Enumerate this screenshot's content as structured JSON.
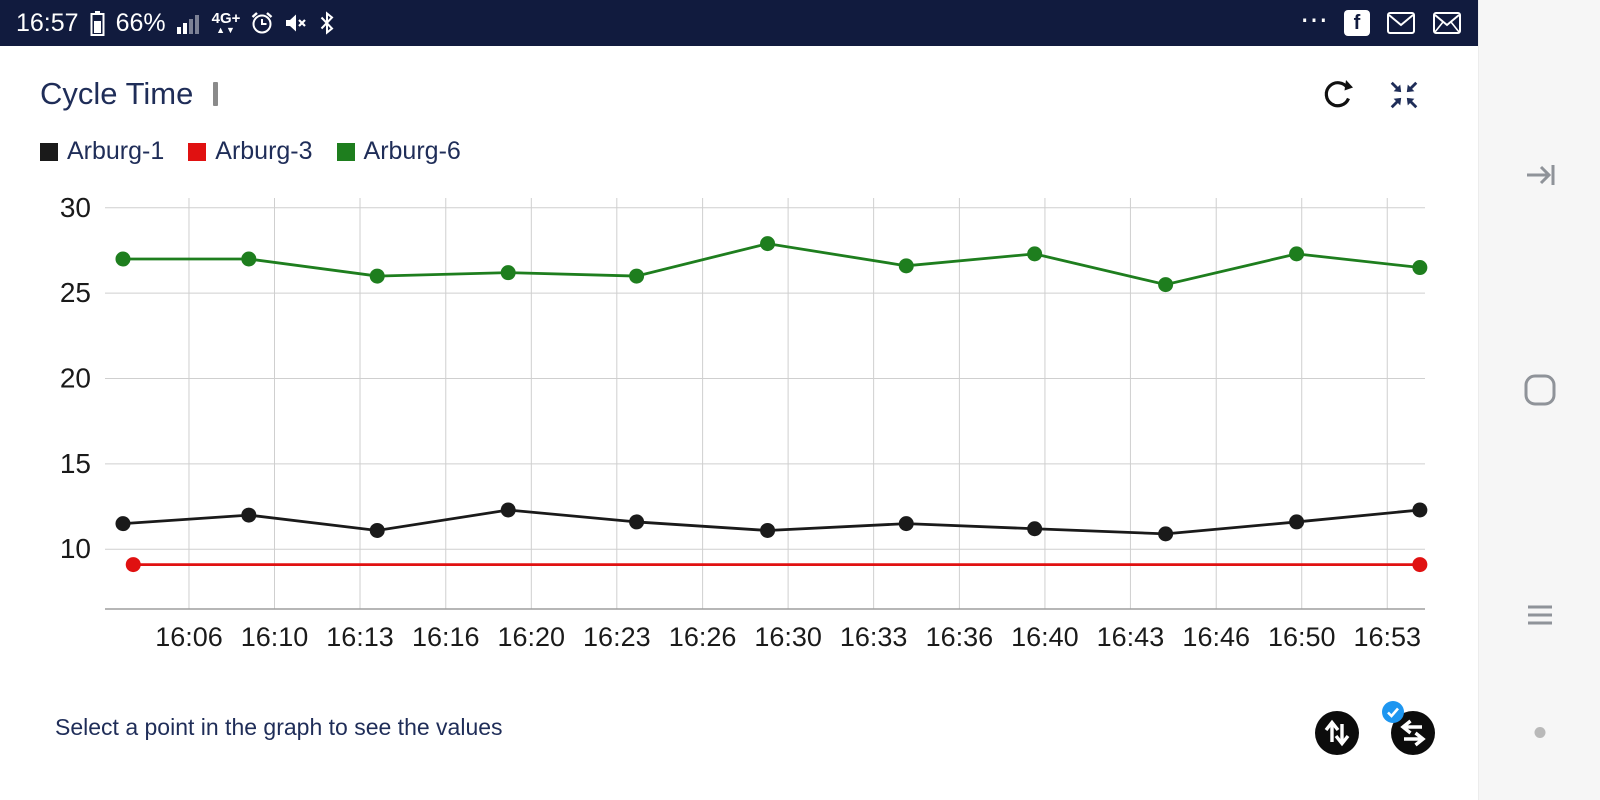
{
  "colors": {
    "status_bar_bg": "#111b3e",
    "navy_text": "#1f2d58",
    "grid": "#cfcfcf",
    "badge_blue": "#1e96f0",
    "nav_rail_bg": "#f6f6f6",
    "nav_icon": "#8f9399",
    "series_black": "#1a1a1a",
    "series_red": "#e01111",
    "series_green": "#1e7e1e"
  },
  "status_bar": {
    "time": "16:57",
    "battery_percent": "66%",
    "network_label": "4G+",
    "overflow_dots": "⋯"
  },
  "header": {
    "title": "Cycle Time"
  },
  "legend": [
    {
      "label": "Arburg-1",
      "color": "#1a1a1a"
    },
    {
      "label": "Arburg-3",
      "color": "#e01111"
    },
    {
      "label": "Arburg-6",
      "color": "#1e7e1e"
    }
  ],
  "chart_data": {
    "type": "line",
    "title": "Cycle Time",
    "x_tick_labels": [
      "16:06",
      "16:10",
      "16:13",
      "16:16",
      "16:20",
      "16:23",
      "16:26",
      "16:30",
      "16:33",
      "16:36",
      "16:40",
      "16:43",
      "16:46",
      "16:50",
      "16:53"
    ],
    "x_tick_minutes": [
      6.67,
      10,
      13.33,
      16.67,
      20,
      23.33,
      26.67,
      30,
      33.33,
      36.67,
      40,
      43.33,
      46.67,
      50,
      53.33
    ],
    "xlim_minutes": [
      3.4,
      54.8
    ],
    "y_ticks": [
      10,
      15,
      20,
      25,
      30
    ],
    "ylim": [
      6.5,
      31.1
    ],
    "grid": true,
    "legend_position": "top-left",
    "series": [
      {
        "name": "Arburg-1",
        "color": "#1a1a1a",
        "marker": "all",
        "x_minutes": [
          4.1,
          9.0,
          14.0,
          19.1,
          24.1,
          29.2,
          34.6,
          39.6,
          44.7,
          49.8,
          54.6
        ],
        "values": [
          11.5,
          12.0,
          11.1,
          12.3,
          11.6,
          11.1,
          11.5,
          11.2,
          10.9,
          11.6,
          12.3
        ]
      },
      {
        "name": "Arburg-3",
        "color": "#e01111",
        "marker": "ends",
        "x_minutes": [
          4.5,
          54.6
        ],
        "values": [
          9.1,
          9.1
        ]
      },
      {
        "name": "Arburg-6",
        "color": "#1e7e1e",
        "marker": "all",
        "x_minutes": [
          4.1,
          9.0,
          14.0,
          19.1,
          24.1,
          29.2,
          34.6,
          39.6,
          44.7,
          49.8,
          54.6
        ],
        "values": [
          27.0,
          27.0,
          26.0,
          26.2,
          26.0,
          27.9,
          26.6,
          27.3,
          25.5,
          27.3,
          26.5
        ]
      }
    ]
  },
  "footer": {
    "hint": "Select a point in the graph to see the values"
  }
}
